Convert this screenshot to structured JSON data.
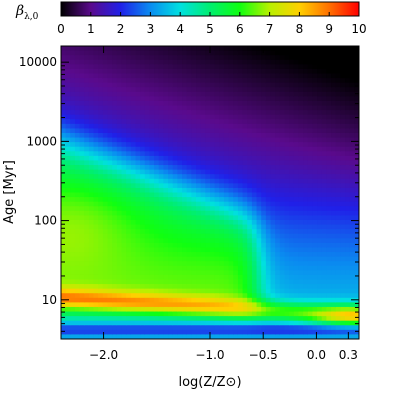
{
  "chart_data": {
    "type": "heatmap",
    "title": "",
    "xlabel": "log(Z/Z⊙)",
    "ylabel": "Age [Myr]",
    "xlim": [
      -2.4,
      0.4
    ],
    "ylim": [
      3.2,
      16000
    ],
    "yscale": "log",
    "x_ticks": [
      {
        "value": -2.0,
        "label": "−2.0"
      },
      {
        "value": -1.0,
        "label": "−1.0"
      },
      {
        "value": -0.5,
        "label": "−0.5"
      },
      {
        "value": 0.0,
        "label": "0.0"
      },
      {
        "value": 0.3,
        "label": "0.3"
      }
    ],
    "y_ticks": [
      {
        "value": 10,
        "label": "10"
      },
      {
        "value": 100,
        "label": "100"
      },
      {
        "value": 1000,
        "label": "1000"
      },
      {
        "value": 10000,
        "label": "10000"
      }
    ],
    "colorbar": {
      "label": "β",
      "label_sub": "λ,0",
      "range": [
        0,
        10
      ],
      "ticks": [
        "0",
        "1",
        "2",
        "3",
        "4",
        "5",
        "6",
        "7",
        "8",
        "9",
        "10"
      ],
      "placement": "top"
    },
    "grid": false
  }
}
